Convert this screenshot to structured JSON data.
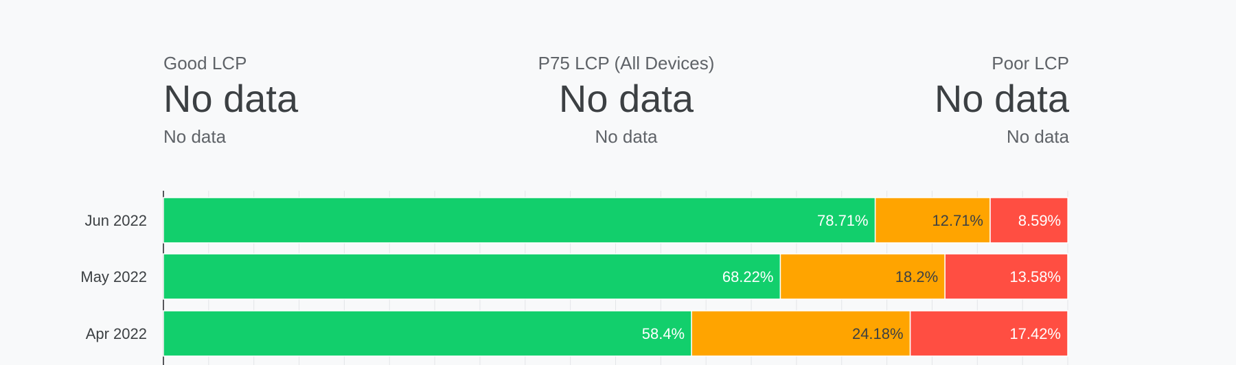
{
  "metrics": {
    "good": {
      "label": "Good LCP",
      "value": "No data",
      "sub": "No data"
    },
    "p75": {
      "label": "P75 LCP (All Devices)",
      "value": "No data",
      "sub": "No data"
    },
    "poor": {
      "label": "Poor LCP",
      "value": "No data",
      "sub": "No data"
    }
  },
  "colors": {
    "good": "#12cf6c",
    "needs_improvement": "#ffa400",
    "poor": "#ff4e42",
    "grid": "#e3e5e8",
    "axis": "#202124",
    "label_light": "#ffffff",
    "label_dark": "#3c4043"
  },
  "chart_data": {
    "type": "bar",
    "orientation": "horizontal",
    "stacked": true,
    "categories": [
      "Jun 2022",
      "May 2022",
      "Apr 2022"
    ],
    "series": [
      {
        "key": "good",
        "values": [
          78.71,
          68.22,
          58.4
        ],
        "labels": [
          "78.71%",
          "68.22%",
          "58.4%"
        ]
      },
      {
        "key": "needs_improvement",
        "values": [
          12.71,
          18.2,
          24.18
        ],
        "labels": [
          "12.71%",
          "18.2%",
          "24.18%"
        ]
      },
      {
        "key": "poor",
        "values": [
          8.59,
          13.58,
          17.42
        ],
        "labels": [
          "8.59%",
          "13.58%",
          "17.42%"
        ]
      }
    ],
    "xlim": [
      0,
      100
    ],
    "grid": true,
    "legend": "none"
  }
}
